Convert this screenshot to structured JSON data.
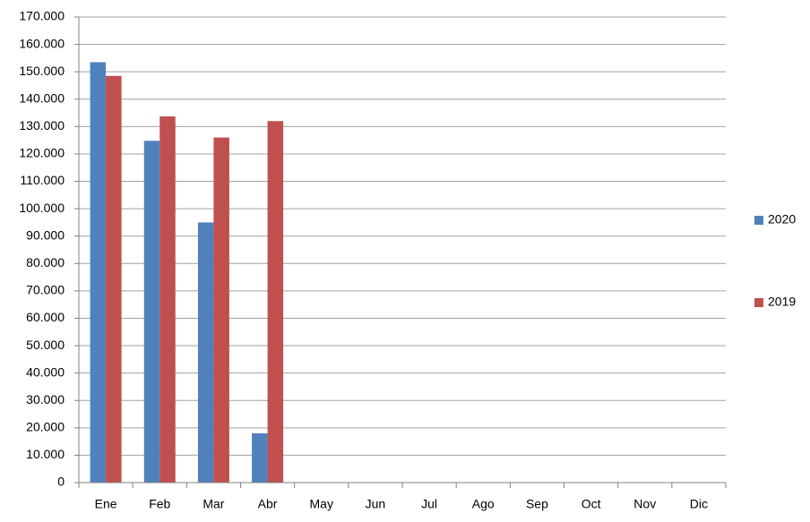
{
  "chart_data": {
    "type": "bar",
    "categories": [
      "Ene",
      "Feb",
      "Mar",
      "Abr",
      "May",
      "Jun",
      "Jul",
      "Ago",
      "Sep",
      "Oct",
      "Nov",
      "Dic"
    ],
    "series": [
      {
        "name": "2020",
        "color": "#4f81bd",
        "values": [
          153500,
          124800,
          95000,
          18000,
          null,
          null,
          null,
          null,
          null,
          null,
          null,
          null
        ]
      },
      {
        "name": "2019",
        "color": "#c0504d",
        "values": [
          148500,
          133700,
          126000,
          132000,
          null,
          null,
          null,
          null,
          null,
          null,
          null,
          null
        ]
      }
    ],
    "ylim": [
      0,
      170000
    ],
    "yticks": [
      0,
      {
        "value": 10000,
        "label": "10.000"
      },
      {
        "value": 20000,
        "label": "20.000"
      },
      {
        "value": 30000,
        "label": "30.000"
      },
      {
        "value": 40000,
        "label": "40.000"
      },
      {
        "value": 50000,
        "label": "50.000"
      },
      {
        "value": 60000,
        "label": "60.000"
      },
      {
        "value": 70000,
        "label": "70.000"
      },
      {
        "value": 80000,
        "label": "80.000"
      },
      {
        "value": 90000,
        "label": "90.000"
      },
      {
        "value": 100000,
        "label": "100.000"
      },
      {
        "value": 110000,
        "label": "110.000"
      },
      {
        "value": 120000,
        "label": "120.000"
      },
      {
        "value": 130000,
        "label": "130.000"
      },
      {
        "value": 140000,
        "label": "140.000"
      },
      {
        "value": 150000,
        "label": "150.000"
      },
      {
        "value": 160000,
        "label": "160.000"
      },
      {
        "value": 170000,
        "label": "170.000"
      }
    ],
    "grid": true,
    "legend": "right"
  }
}
